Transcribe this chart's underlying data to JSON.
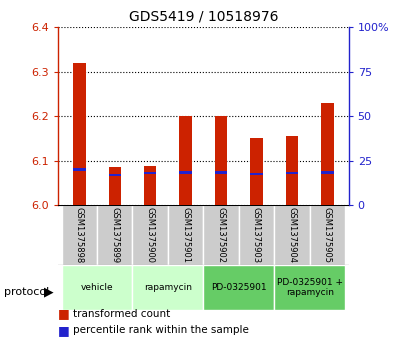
{
  "title": "GDS5419 / 10518976",
  "samples": [
    "GSM1375898",
    "GSM1375899",
    "GSM1375900",
    "GSM1375901",
    "GSM1375902",
    "GSM1375903",
    "GSM1375904",
    "GSM1375905"
  ],
  "red_values": [
    6.32,
    6.085,
    6.088,
    6.2,
    6.2,
    6.15,
    6.155,
    6.23
  ],
  "blue_values": [
    20.0,
    17.0,
    18.0,
    18.5,
    18.5,
    17.5,
    18.0,
    18.5
  ],
  "ylim_left": [
    6.0,
    6.4
  ],
  "ylim_right": [
    0,
    100
  ],
  "yticks_left": [
    6.0,
    6.1,
    6.2,
    6.3,
    6.4
  ],
  "yticks_right": [
    0,
    25,
    50,
    75,
    100
  ],
  "protocols": [
    {
      "label": "vehicle",
      "span": [
        0,
        2
      ],
      "color": "#ccffcc"
    },
    {
      "label": "rapamycin",
      "span": [
        2,
        4
      ],
      "color": "#ccffcc"
    },
    {
      "label": "PD-0325901",
      "span": [
        4,
        6
      ],
      "color": "#66cc66"
    },
    {
      "label": "PD-0325901 +\nrapamycin",
      "span": [
        6,
        8
      ],
      "color": "#66cc66"
    }
  ],
  "bar_width": 0.35,
  "red_color": "#cc2200",
  "blue_color": "#2222cc",
  "sample_bg": "#cccccc",
  "left_axis_color": "#cc2200",
  "right_axis_color": "#2222cc",
  "legend_red_label": "transformed count",
  "legend_blue_label": "percentile rank within the sample",
  "base_value": 6.0,
  "blue_bar_height": 0.006
}
